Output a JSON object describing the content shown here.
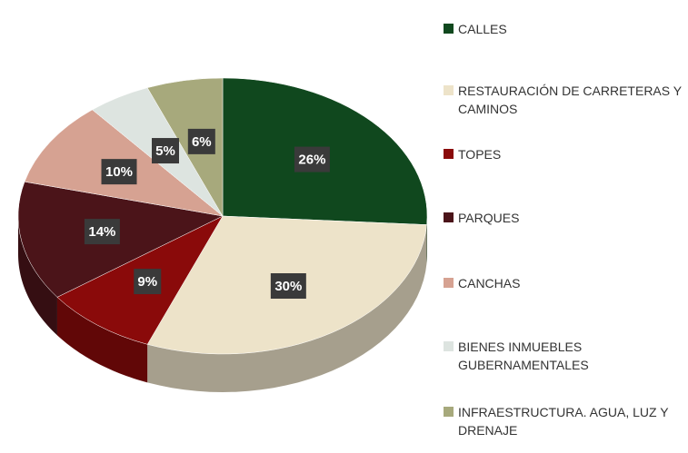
{
  "chart_data": {
    "type": "pie",
    "categories": [
      "CALLES",
      "RESTAURACIÓN DE CARRETERAS Y CAMINOS",
      "TOPES",
      "PARQUES",
      "CANCHAS",
      "BIENES INMUEBLES GUBERNAMENTALES",
      "INFRAESTRUCTURA. AGUA, LUZ Y DRENAJE"
    ],
    "values": [
      26,
      30,
      9,
      14,
      10,
      5,
      6
    ],
    "value_labels": [
      "26%",
      "30%",
      "9%",
      "14%",
      "10%",
      "5%",
      "6%"
    ],
    "colors": [
      "#10481e",
      "#ede3c9",
      "#8a0a0a",
      "#4b1419",
      "#d6a292",
      "#dde4e0",
      "#a7a97c"
    ],
    "legend": "right"
  }
}
